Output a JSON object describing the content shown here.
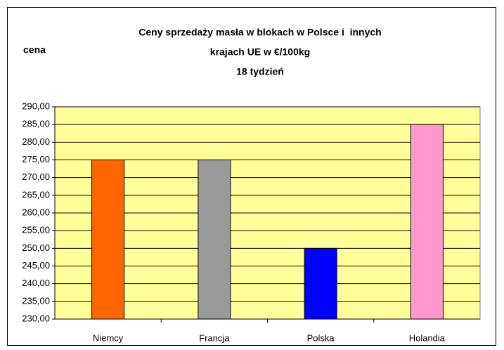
{
  "chart_data": {
    "type": "bar",
    "title": [
      "Ceny sprzedaży masła w blokach w Polsce i  innych",
      "krajach UE w €/100kg",
      "18 tydzień"
    ],
    "y_label": "cena",
    "categories": [
      "Niemcy",
      "Francja",
      "Polska",
      "Holandia"
    ],
    "values": [
      275,
      275,
      250,
      285
    ],
    "colors": [
      "#ff6600",
      "#999999",
      "#0000ff",
      "#ff99cc"
    ],
    "ylim": [
      230,
      290
    ],
    "yticks": [
      {
        "value": 230,
        "label": "230,00"
      },
      {
        "value": 235,
        "label": "235,00"
      },
      {
        "value": 240,
        "label": "240,00"
      },
      {
        "value": 245,
        "label": "245,00"
      },
      {
        "value": 250,
        "label": "250,00"
      },
      {
        "value": 255,
        "label": "255,00"
      },
      {
        "value": 260,
        "label": "260,00"
      },
      {
        "value": 265,
        "label": "265,00"
      },
      {
        "value": 270,
        "label": "270,00"
      },
      {
        "value": 275,
        "label": "275,00"
      },
      {
        "value": 280,
        "label": "280,00"
      },
      {
        "value": 285,
        "label": "285,00"
      },
      {
        "value": 290,
        "label": "290,00"
      }
    ],
    "grid": true,
    "plot_background": "#ffff99"
  }
}
